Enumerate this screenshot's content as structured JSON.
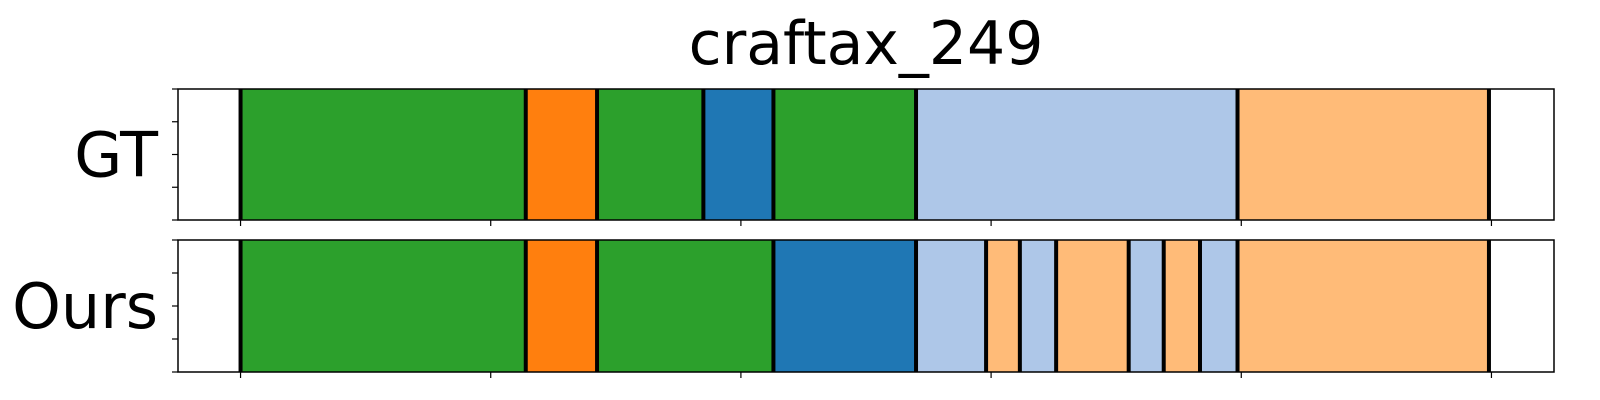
{
  "chart_data": {
    "type": "segmentation-timeline",
    "title": "craftax_249",
    "xlim": [
      0,
      110
    ],
    "x_ticks": [
      5,
      25,
      45,
      65,
      85,
      105
    ],
    "colors": {
      "green": "#2ca02c",
      "orange": "#ff7f0e",
      "blue": "#1f77b4",
      "light_blue": "#aec7e8",
      "light_orange": "#ffbb78"
    },
    "rows": [
      {
        "label": "GT",
        "segments": [
          {
            "start": 5,
            "end": 27.8,
            "color": "green"
          },
          {
            "start": 27.8,
            "end": 33.5,
            "color": "orange"
          },
          {
            "start": 33.5,
            "end": 42.0,
            "color": "green"
          },
          {
            "start": 42.0,
            "end": 47.6,
            "color": "blue"
          },
          {
            "start": 47.6,
            "end": 59.0,
            "color": "green"
          },
          {
            "start": 59.0,
            "end": 84.7,
            "color": "light_blue"
          },
          {
            "start": 84.7,
            "end": 104.8,
            "color": "light_orange"
          }
        ]
      },
      {
        "label": "Ours",
        "segments": [
          {
            "start": 5,
            "end": 27.8,
            "color": "green"
          },
          {
            "start": 27.8,
            "end": 33.5,
            "color": "orange"
          },
          {
            "start": 33.5,
            "end": 47.6,
            "color": "green"
          },
          {
            "start": 47.6,
            "end": 59.0,
            "color": "blue"
          },
          {
            "start": 59.0,
            "end": 64.6,
            "color": "light_blue"
          },
          {
            "start": 64.6,
            "end": 67.3,
            "color": "light_orange"
          },
          {
            "start": 67.3,
            "end": 70.2,
            "color": "light_blue"
          },
          {
            "start": 70.2,
            "end": 76.0,
            "color": "light_orange"
          },
          {
            "start": 76.0,
            "end": 78.8,
            "color": "light_blue"
          },
          {
            "start": 78.8,
            "end": 81.7,
            "color": "light_orange"
          },
          {
            "start": 81.7,
            "end": 84.7,
            "color": "light_blue"
          },
          {
            "start": 84.7,
            "end": 104.8,
            "color": "light_orange"
          }
        ]
      }
    ]
  }
}
